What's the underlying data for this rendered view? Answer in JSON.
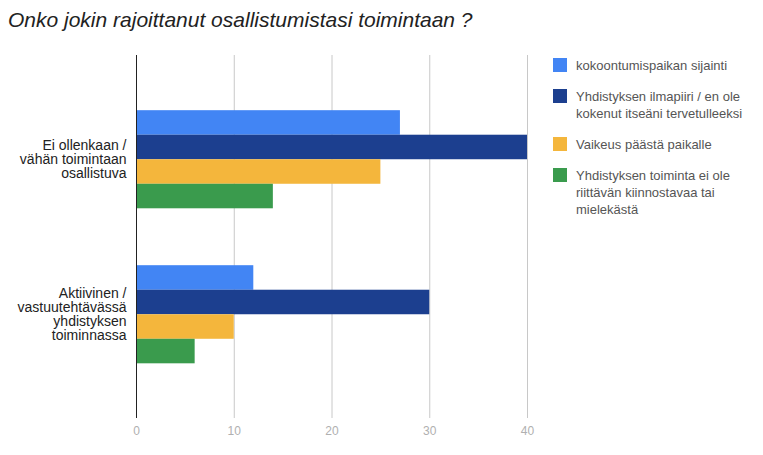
{
  "chart_data": {
    "type": "bar",
    "orientation": "horizontal",
    "title": "Onko jokin rajoittanut osallistumistasi toimintaan ?",
    "categories": [
      "Ei ollenkaan / vähän toimintaan osallistuva",
      "Aktiivinen / vastuutehtävässä yhdistyksen toiminnassa"
    ],
    "series": [
      {
        "name": "kokoontumispaikan sijainti",
        "color": "#4285f4",
        "values": [
          27,
          12
        ]
      },
      {
        "name": "Yhdistyksen ilmapiiri / en ole kokenut itseäni tervetulleeksi",
        "color": "#1c3f8f",
        "values": [
          40,
          30
        ]
      },
      {
        "name": "Vaikeus päästä paikalle",
        "color": "#f4b63c",
        "values": [
          25,
          10
        ]
      },
      {
        "name": "Yhdistyksen toiminta ei ole riittävän kiinnostavaa tai mielekästä",
        "color": "#3a9b4d",
        "values": [
          14,
          6
        ]
      }
    ],
    "xlim": [
      0,
      40
    ],
    "xticks": [
      0,
      10,
      20,
      30,
      40
    ],
    "grid": true,
    "legend": "right"
  }
}
